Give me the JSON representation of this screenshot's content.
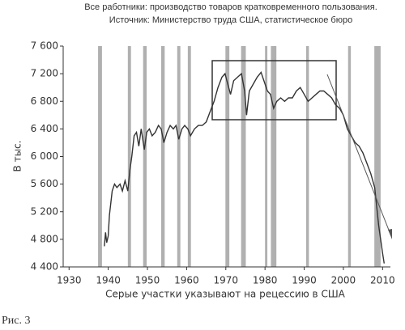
{
  "chart_data": {
    "type": "line",
    "title": "Все работники: производство товаров кратковременного пользования.",
    "subtitle": "Источник: Министерство труда США, статистическое бюро",
    "y_label": "В тыс.",
    "x_label": "Серые участки указывают на рецессию в США",
    "caption": "Рис. 3",
    "xlim": [
      1928.5,
      2012
    ],
    "xticks": [
      1930,
      1940,
      1950,
      1960,
      1970,
      1980,
      1990,
      2000,
      2010
    ],
    "ylim": [
      4400,
      7600
    ],
    "yticks": [
      {
        "value": 4400,
        "label": "4 400"
      },
      {
        "value": 4800,
        "label": "4 800"
      },
      {
        "value": 5200,
        "label": "5 200"
      },
      {
        "value": 5600,
        "label": "5 600"
      },
      {
        "value": 6000,
        "label": "6 000"
      },
      {
        "value": 6400,
        "label": "6 400"
      },
      {
        "value": 6800,
        "label": "6 800"
      },
      {
        "value": 7200,
        "label": "7 200"
      },
      {
        "value": 7600,
        "label": "7 600"
      }
    ],
    "recession_color": "#b0b0b0",
    "recessions": [
      [
        1937.4,
        1938.4
      ],
      [
        1945.0,
        1945.8
      ],
      [
        1948.9,
        1949.8
      ],
      [
        1953.5,
        1954.4
      ],
      [
        1957.6,
        1958.4
      ],
      [
        1960.3,
        1961.1
      ],
      [
        1969.9,
        1970.9
      ],
      [
        1973.9,
        1975.1
      ],
      [
        1980.0,
        1980.6
      ],
      [
        1981.5,
        1982.9
      ],
      [
        1990.5,
        1991.2
      ],
      [
        2001.2,
        2001.9
      ],
      [
        2007.9,
        2009.5
      ]
    ],
    "series": [
      {
        "color": "#333333",
        "x": [
          1939.0,
          1939.3,
          1939.6,
          1940.0,
          1940.3,
          1941.0,
          1941.6,
          1942.2,
          1943.0,
          1943.6,
          1944.3,
          1945.0,
          1945.5,
          1946.0,
          1946.6,
          1947.2,
          1947.8,
          1948.4,
          1949.2,
          1949.8,
          1950.5,
          1951.2,
          1952.0,
          1952.8,
          1953.5,
          1954.2,
          1955.0,
          1955.8,
          1956.6,
          1957.3,
          1958.0,
          1958.8,
          1959.5,
          1960.3,
          1961.0,
          1962.0,
          1963.0,
          1964.0,
          1965.0,
          1966.0,
          1967.0,
          1968.0,
          1969.0,
          1969.8,
          1970.5,
          1971.2,
          1972.0,
          1973.0,
          1974.0,
          1974.8,
          1975.3,
          1976.0,
          1977.0,
          1978.0,
          1979.0,
          1980.0,
          1980.6,
          1981.4,
          1982.2,
          1983.0,
          1984.0,
          1985.0,
          1986.0,
          1987.0,
          1988.0,
          1989.0,
          1990.0,
          1991.0,
          1992.0,
          1993.0,
          1994.0,
          1995.0,
          1996.0,
          1997.0,
          1998.0,
          1999.0,
          2000.0,
          2001.0,
          2002.0,
          2003.0,
          2004.0,
          2005.0,
          2006.0,
          2007.0,
          2008.0,
          2009.0,
          2009.5,
          2010.0,
          2010.4
        ],
        "values": [
          4700,
          4900,
          4750,
          4850,
          5150,
          5500,
          5600,
          5550,
          5600,
          5500,
          5650,
          5500,
          5800,
          6000,
          6300,
          6350,
          6150,
          6400,
          6100,
          6350,
          6400,
          6300,
          6350,
          6450,
          6400,
          6200,
          6350,
          6450,
          6400,
          6450,
          6250,
          6400,
          6450,
          6400,
          6300,
          6400,
          6450,
          6450,
          6500,
          6650,
          6800,
          7000,
          7150,
          7200,
          7050,
          6900,
          7100,
          7150,
          7200,
          6950,
          6600,
          6950,
          7050,
          7150,
          7220,
          7050,
          6950,
          6900,
          6700,
          6800,
          6850,
          6800,
          6850,
          6850,
          6950,
          7000,
          6900,
          6800,
          6850,
          6900,
          6950,
          6950,
          6900,
          6850,
          6750,
          6700,
          6600,
          6400,
          6300,
          6200,
          6150,
          6050,
          5900,
          5750,
          5550,
          5000,
          4800,
          4600,
          4450
        ]
      }
    ]
  }
}
